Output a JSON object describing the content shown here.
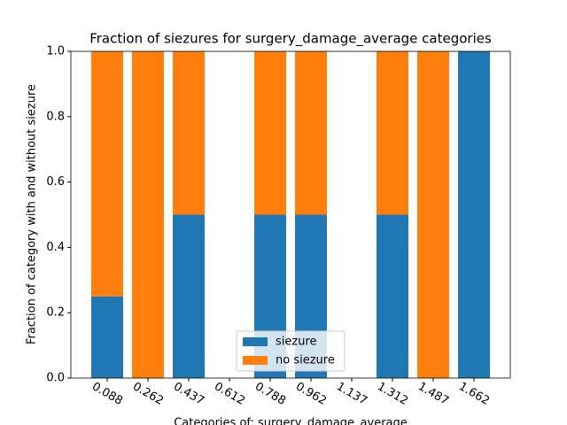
{
  "chart_data": {
    "type": "stacked_bar",
    "title": "Fraction of siezures for surgery_damage_average categories",
    "x_label": "Categories of: surgery_damage_average",
    "y_label": "Fraction of category with and without siezure",
    "categories": [
      "0.088",
      "0.262",
      "0.437",
      "0.612",
      "0.788",
      "0.962",
      "1.137",
      "1.312",
      "1.487",
      "1.662"
    ],
    "series": [
      {
        "name": "siezure",
        "color": "#1f77b4",
        "values": [
          0.25,
          0,
          0.5,
          0,
          0.5,
          0.5,
          0,
          0.5,
          0,
          1
        ]
      },
      {
        "name": "no siezure",
        "color": "#ff7f0e",
        "values": [
          0.75,
          1,
          0.5,
          0,
          0.5,
          0.5,
          0,
          0.5,
          1,
          0
        ]
      }
    ],
    "ylim": [
      0,
      1
    ],
    "yticks": [
      {
        "value": 0,
        "label": "0.0"
      },
      {
        "value": 0.2,
        "label": "0.2"
      },
      {
        "value": 0.4,
        "label": "0.4"
      },
      {
        "value": 0.6,
        "label": "0.6"
      },
      {
        "value": 0.8,
        "label": "0.8"
      },
      {
        "value": 1,
        "label": "1.0"
      }
    ],
    "legend": "lower center"
  }
}
